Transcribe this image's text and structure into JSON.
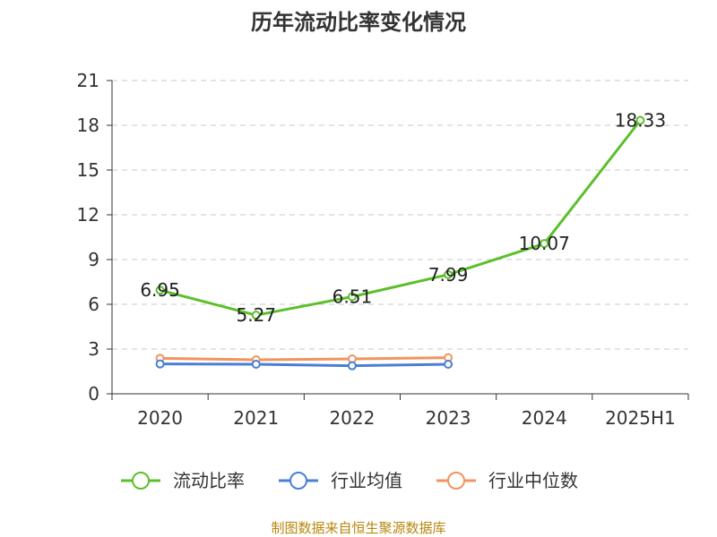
{
  "chart_data": {
    "type": "line",
    "title": "历年流动比率变化情况",
    "categories": [
      "2020",
      "2021",
      "2022",
      "2023",
      "2024",
      "2025H1"
    ],
    "series": [
      {
        "name": "流动比率",
        "color": "#5cbf2a",
        "values": [
          6.95,
          5.27,
          6.51,
          7.99,
          10.07,
          18.33
        ],
        "data_labels": [
          "6.95",
          "5.27",
          "6.51",
          "7.99",
          "10.07",
          "18.33"
        ]
      },
      {
        "name": "行业均值",
        "color": "#4a7fd8",
        "values": [
          2.0,
          1.98,
          1.88,
          1.98,
          null,
          null
        ]
      },
      {
        "name": "行业中位数",
        "color": "#f0945e",
        "values": [
          2.38,
          2.28,
          2.34,
          2.42,
          null,
          null
        ]
      }
    ],
    "yticks": [
      "0",
      "3",
      "6",
      "9",
      "12",
      "15",
      "18",
      "21"
    ],
    "ylim": [
      0,
      21
    ],
    "grid": true,
    "legend_position": "bottom",
    "source": "制图数据来自恒生聚源数据库"
  }
}
